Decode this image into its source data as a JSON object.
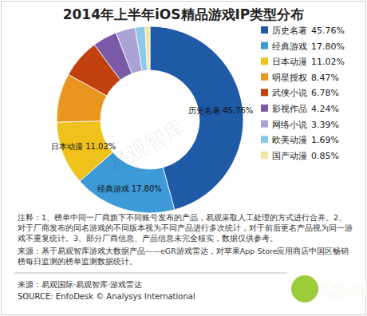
{
  "chart_data": {
    "type": "donut",
    "title": "2014年上半年iOS精品游戏IP类型分布",
    "categories": [
      "历史名著",
      "经典游戏",
      "日本动漫",
      "明星授权",
      "武侠小说",
      "影视作品",
      "网络小说",
      "欧美动漫",
      "国产动漫"
    ],
    "values": [
      45.76,
      17.8,
      11.02,
      8.47,
      6.78,
      4.24,
      3.39,
      1.69,
      0.85
    ],
    "value_labels": [
      "45.76%",
      "17.80%",
      "11.02%",
      "8.47%",
      "6.78%",
      "4.24%",
      "3.39%",
      "1.69%",
      "0.85%"
    ],
    "colors": [
      "#1f5aa6",
      "#3d9ad6",
      "#eec21a",
      "#e8961f",
      "#c0400e",
      "#7a5aa6",
      "#aaa3d4",
      "#8cc8ec",
      "#f3e4a0"
    ],
    "annotations": [
      "历史名著 45.76%",
      "经典游戏 17.80%",
      "日本动漫 11.02%"
    ],
    "legend": "right",
    "notes": "注释：1、榜单中同一厂商旗下不同账号发布的产品，易观采取人工处理的方式进行合并。2、对于厂商发布的同名游戏的不同版本视为不同产品进行多次统计，对于前后更名产品视为同一游戏不重复统计。3、部分厂商信息、产品信息未完全核实，数据仅供参考。",
    "source_note": "来源：基于易观智库游戏大数据产品——eGR游戏雷达，对苹果App Store应用商店中国区畅销榜每日监测的榜单监测数据统计。",
    "source": "来源：易观国际·易观智库·游戏雷达",
    "source_en": "SOURCE: EnfoDesk © Analysys International",
    "watermark": "易观智库",
    "logo": "优游网"
  }
}
